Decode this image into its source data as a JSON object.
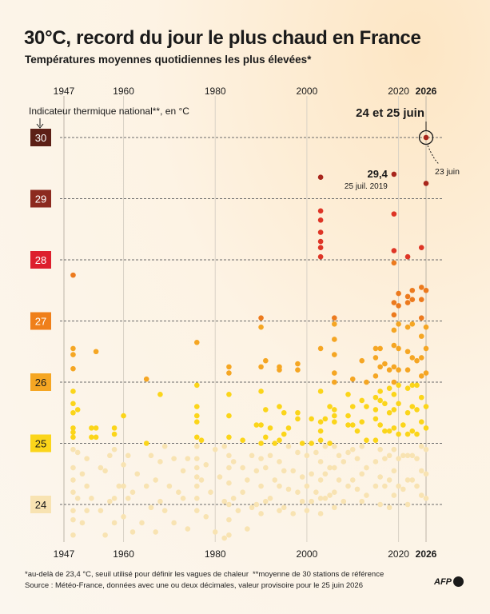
{
  "title": "30°C, record du jour le plus chaud en France",
  "subtitle": "Températures moyennes quotidiennes les plus élevées*",
  "footnotes": [
    "*au-delà de 23,4 °C, seuil utilisé pour définir les vagues de chaleur",
    "**moyenne de 30 stations de référence",
    "Source : Météo-France, données avec une ou deux décimales, valeur provisoire pour le 25 juin 2026"
  ],
  "logo": "AFP",
  "chart_data": {
    "type": "scatter",
    "title": "30°C, record du jour le plus chaud en France",
    "ylabel": "Indicateur thermique national**, en °C",
    "xlim": [
      1947,
      2026
    ],
    "ylim": [
      23.4,
      30
    ],
    "x_ticks": [
      1947,
      1960,
      1980,
      2000,
      2020,
      2026
    ],
    "y_ticks": [
      24,
      25,
      26,
      27,
      28,
      29,
      30
    ],
    "y_tick_colors": {
      "24": "#f8e3b2",
      "25": "#fbd51a",
      "26": "#f5a623",
      "27": "#ef7f1a",
      "28": "#dd1f2d",
      "29": "#8c2a1f",
      "30": "#5c1f16"
    },
    "grid": "horizontal dashed, vertical solid",
    "color_scale": [
      {
        "min": 23.4,
        "max": 25,
        "color": "#f8e3b2"
      },
      {
        "min": 25,
        "max": 26,
        "color": "#fbd51a"
      },
      {
        "min": 26,
        "max": 27,
        "color": "#f5a623"
      },
      {
        "min": 27,
        "max": 28,
        "color": "#ec7a1e"
      },
      {
        "min": 28,
        "max": 29,
        "color": "#de3526"
      },
      {
        "min": 29,
        "max": 30.5,
        "color": "#a8261c"
      }
    ],
    "annotations": [
      {
        "text": "24 et 25 juin",
        "x": 2026,
        "y": 30.0
      },
      {
        "text": "23 juin",
        "x": 2026,
        "y": 29.25
      },
      {
        "text": "29,4",
        "x": 2019,
        "y": 29.4
      },
      {
        "text": "25 juil. 2019",
        "x": 2019,
        "y": 29.4
      }
    ],
    "points": [
      [
        1949,
        27.75
      ],
      [
        1949,
        26.55
      ],
      [
        1949,
        26.45
      ],
      [
        1949,
        26.22
      ],
      [
        1949,
        25.85
      ],
      [
        1949,
        25.65
      ],
      [
        1949,
        25.5
      ],
      [
        1949,
        25.25
      ],
      [
        1949,
        25.18
      ],
      [
        1949,
        25.1
      ],
      [
        1949,
        24.9
      ],
      [
        1949,
        24.6
      ],
      [
        1949,
        24.4
      ],
      [
        1949,
        24.2
      ],
      [
        1949,
        23.9
      ],
      [
        1949,
        23.75
      ],
      [
        1949,
        23.5
      ],
      [
        1950,
        25.55
      ],
      [
        1950,
        24.85
      ],
      [
        1950,
        24.1
      ],
      [
        1951,
        24.5
      ],
      [
        1951,
        23.7
      ],
      [
        1952,
        24.75
      ],
      [
        1952,
        24.3
      ],
      [
        1952,
        23.9
      ],
      [
        1953,
        25.25
      ],
      [
        1953,
        25.1
      ],
      [
        1953,
        24.1
      ],
      [
        1954,
        26.5
      ],
      [
        1954,
        25.25
      ],
      [
        1954,
        25.1
      ],
      [
        1955,
        24.6
      ],
      [
        1955,
        23.9
      ],
      [
        1956,
        24.55
      ],
      [
        1956,
        23.5
      ],
      [
        1957,
        24.8
      ],
      [
        1957,
        24.05
      ],
      [
        1958,
        25.25
      ],
      [
        1958,
        25.15
      ],
      [
        1958,
        24.9
      ],
      [
        1958,
        24.1
      ],
      [
        1958,
        23.7
      ],
      [
        1959,
        24.3
      ],
      [
        1960,
        25.45
      ],
      [
        1960,
        24.65
      ],
      [
        1960,
        24.3
      ],
      [
        1960,
        23.8
      ],
      [
        1961,
        24.8
      ],
      [
        1961,
        24.1
      ],
      [
        1962,
        24.2
      ],
      [
        1962,
        23.55
      ],
      [
        1963,
        24.5
      ],
      [
        1964,
        23.7
      ],
      [
        1965,
        26.05
      ],
      [
        1965,
        25.0
      ],
      [
        1965,
        24.3
      ],
      [
        1966,
        24.8
      ],
      [
        1966,
        23.95
      ],
      [
        1967,
        24.4
      ],
      [
        1967,
        23.55
      ],
      [
        1968,
        25.8
      ],
      [
        1968,
        24.7
      ],
      [
        1968,
        24.05
      ],
      [
        1969,
        24.95
      ],
      [
        1969,
        23.9
      ],
      [
        1970,
        24.3
      ],
      [
        1971,
        24.75
      ],
      [
        1971,
        23.7
      ],
      [
        1972,
        24.2
      ],
      [
        1973,
        24.55
      ],
      [
        1973,
        24.1
      ],
      [
        1974,
        24.75
      ],
      [
        1974,
        23.6
      ],
      [
        1976,
        26.65
      ],
      [
        1976,
        25.95
      ],
      [
        1976,
        25.6
      ],
      [
        1976,
        25.45
      ],
      [
        1976,
        25.35
      ],
      [
        1976,
        25.1
      ],
      [
        1976,
        24.95
      ],
      [
        1976,
        24.75
      ],
      [
        1976,
        24.6
      ],
      [
        1976,
        24.45
      ],
      [
        1976,
        24.3
      ],
      [
        1976,
        24.1
      ],
      [
        1976,
        23.9
      ],
      [
        1977,
        25.05
      ],
      [
        1977,
        24.4
      ],
      [
        1978,
        24.65
      ],
      [
        1978,
        23.8
      ],
      [
        1979,
        24.2
      ],
      [
        1980,
        24.9
      ],
      [
        1980,
        23.55
      ],
      [
        1981,
        24.45
      ],
      [
        1982,
        24.95
      ],
      [
        1982,
        24.05
      ],
      [
        1982,
        23.45
      ],
      [
        1983,
        26.25
      ],
      [
        1983,
        26.15
      ],
      [
        1983,
        25.8
      ],
      [
        1983,
        25.45
      ],
      [
        1983,
        25.1
      ],
      [
        1983,
        24.8
      ],
      [
        1983,
        24.6
      ],
      [
        1983,
        24.35
      ],
      [
        1983,
        24.0
      ],
      [
        1983,
        23.75
      ],
      [
        1983,
        23.5
      ],
      [
        1984,
        24.7
      ],
      [
        1984,
        24.1
      ],
      [
        1985,
        23.9
      ],
      [
        1986,
        25.05
      ],
      [
        1986,
        24.6
      ],
      [
        1986,
        24.2
      ],
      [
        1987,
        24.4
      ],
      [
        1987,
        23.6
      ],
      [
        1988,
        24.8
      ],
      [
        1988,
        23.95
      ],
      [
        1989,
        25.3
      ],
      [
        1989,
        24.55
      ],
      [
        1989,
        24.0
      ],
      [
        1990,
        27.05
      ],
      [
        1990,
        26.9
      ],
      [
        1990,
        26.25
      ],
      [
        1990,
        25.85
      ],
      [
        1990,
        25.3
      ],
      [
        1990,
        25.0
      ],
      [
        1990,
        24.75
      ],
      [
        1990,
        24.3
      ],
      [
        1990,
        23.85
      ],
      [
        1991,
        26.35
      ],
      [
        1991,
        25.55
      ],
      [
        1991,
        25.1
      ],
      [
        1991,
        24.6
      ],
      [
        1991,
        24.05
      ],
      [
        1992,
        25.25
      ],
      [
        1992,
        24.8
      ],
      [
        1992,
        24.1
      ],
      [
        1993,
        25.0
      ],
      [
        1993,
        24.4
      ],
      [
        1994,
        26.25
      ],
      [
        1994,
        26.2
      ],
      [
        1994,
        25.6
      ],
      [
        1994,
        25.05
      ],
      [
        1994,
        24.7
      ],
      [
        1994,
        24.3
      ],
      [
        1994,
        23.9
      ],
      [
        1995,
        25.5
      ],
      [
        1995,
        25.15
      ],
      [
        1995,
        24.55
      ],
      [
        1995,
        23.95
      ],
      [
        1996,
        25.25
      ],
      [
        1996,
        24.95
      ],
      [
        1996,
        24.25
      ],
      [
        1997,
        24.55
      ],
      [
        1997,
        23.85
      ],
      [
        1998,
        26.3
      ],
      [
        1998,
        26.2
      ],
      [
        1998,
        25.5
      ],
      [
        1998,
        25.4
      ],
      [
        1998,
        24.85
      ],
      [
        1998,
        24.2
      ],
      [
        1999,
        25.0
      ],
      [
        1999,
        24.45
      ],
      [
        1999,
        24.05
      ],
      [
        2000,
        24.8
      ],
      [
        2000,
        24.3
      ],
      [
        2000,
        23.9
      ],
      [
        2001,
        25.4
      ],
      [
        2001,
        25.0
      ],
      [
        2001,
        24.5
      ],
      [
        2001,
        24.05
      ],
      [
        2002,
        24.85
      ],
      [
        2002,
        24.2
      ],
      [
        2003,
        29.35
      ],
      [
        2003,
        28.8
      ],
      [
        2003,
        28.65
      ],
      [
        2003,
        28.45
      ],
      [
        2003,
        28.3
      ],
      [
        2003,
        28.2
      ],
      [
        2003,
        28.05
      ],
      [
        2003,
        26.55
      ],
      [
        2003,
        25.85
      ],
      [
        2003,
        25.35
      ],
      [
        2003,
        25.2
      ],
      [
        2003,
        25.05
      ],
      [
        2003,
        24.7
      ],
      [
        2003,
        24.4
      ],
      [
        2003,
        24.1
      ],
      [
        2003,
        23.85
      ],
      [
        2004,
        25.4
      ],
      [
        2004,
        24.95
      ],
      [
        2004,
        24.5
      ],
      [
        2004,
        24.1
      ],
      [
        2005,
        25.6
      ],
      [
        2005,
        25.0
      ],
      [
        2005,
        24.6
      ],
      [
        2005,
        24.15
      ],
      [
        2006,
        27.05
      ],
      [
        2006,
        26.95
      ],
      [
        2006,
        26.7
      ],
      [
        2006,
        26.45
      ],
      [
        2006,
        26.15
      ],
      [
        2006,
        26.0
      ],
      [
        2006,
        25.55
      ],
      [
        2006,
        25.45
      ],
      [
        2006,
        25.35
      ],
      [
        2006,
        24.95
      ],
      [
        2006,
        24.6
      ],
      [
        2006,
        24.2
      ],
      [
        2006,
        23.95
      ],
      [
        2007,
        24.8
      ],
      [
        2007,
        24.4
      ],
      [
        2008,
        24.7
      ],
      [
        2008,
        24.05
      ],
      [
        2009,
        25.8
      ],
      [
        2009,
        25.45
      ],
      [
        2009,
        25.3
      ],
      [
        2009,
        24.85
      ],
      [
        2009,
        24.3
      ],
      [
        2010,
        26.05
      ],
      [
        2010,
        25.6
      ],
      [
        2010,
        25.3
      ],
      [
        2010,
        24.9
      ],
      [
        2010,
        24.4
      ],
      [
        2011,
        25.2
      ],
      [
        2011,
        24.75
      ],
      [
        2011,
        24.25
      ],
      [
        2012,
        26.35
      ],
      [
        2012,
        25.7
      ],
      [
        2012,
        25.35
      ],
      [
        2012,
        24.95
      ],
      [
        2012,
        24.5
      ],
      [
        2012,
        24.05
      ],
      [
        2013,
        26.0
      ],
      [
        2013,
        25.6
      ],
      [
        2013,
        25.05
      ],
      [
        2013,
        24.6
      ],
      [
        2013,
        24.15
      ],
      [
        2015,
        26.55
      ],
      [
        2015,
        26.4
      ],
      [
        2015,
        26.1
      ],
      [
        2015,
        25.75
      ],
      [
        2015,
        25.55
      ],
      [
        2015,
        25.4
      ],
      [
        2015,
        25.05
      ],
      [
        2015,
        24.7
      ],
      [
        2015,
        24.3
      ],
      [
        2016,
        26.55
      ],
      [
        2016,
        26.25
      ],
      [
        2016,
        25.85
      ],
      [
        2016,
        25.7
      ],
      [
        2016,
        25.3
      ],
      [
        2016,
        24.9
      ],
      [
        2016,
        24.45
      ],
      [
        2016,
        24.0
      ],
      [
        2017,
        26.3
      ],
      [
        2017,
        25.65
      ],
      [
        2017,
        25.2
      ],
      [
        2017,
        24.75
      ],
      [
        2017,
        24.3
      ],
      [
        2018,
        26.2
      ],
      [
        2018,
        25.9
      ],
      [
        2018,
        25.5
      ],
      [
        2018,
        25.2
      ],
      [
        2018,
        24.8
      ],
      [
        2018,
        24.4
      ],
      [
        2018,
        23.95
      ],
      [
        2019,
        29.4
      ],
      [
        2019,
        28.75
      ],
      [
        2019,
        28.15
      ],
      [
        2019,
        27.95
      ],
      [
        2019,
        27.3
      ],
      [
        2019,
        27.1
      ],
      [
        2019,
        26.85
      ],
      [
        2019,
        26.6
      ],
      [
        2019,
        26.25
      ],
      [
        2019,
        26.0
      ],
      [
        2019,
        25.8
      ],
      [
        2019,
        25.55
      ],
      [
        2019,
        25.25
      ],
      [
        2019,
        24.9
      ],
      [
        2019,
        24.55
      ],
      [
        2019,
        24.15
      ],
      [
        2020,
        27.45
      ],
      [
        2020,
        27.25
      ],
      [
        2020,
        26.95
      ],
      [
        2020,
        26.55
      ],
      [
        2020,
        26.2
      ],
      [
        2020,
        25.95
      ],
      [
        2020,
        25.65
      ],
      [
        2020,
        25.15
      ],
      [
        2020,
        24.75
      ],
      [
        2020,
        24.3
      ],
      [
        2021,
        25.3
      ],
      [
        2021,
        24.8
      ],
      [
        2021,
        24.25
      ],
      [
        2022,
        28.05
      ],
      [
        2022,
        27.4
      ],
      [
        2022,
        27.3
      ],
      [
        2022,
        26.9
      ],
      [
        2022,
        26.5
      ],
      [
        2022,
        26.2
      ],
      [
        2022,
        25.9
      ],
      [
        2022,
        25.5
      ],
      [
        2022,
        25.15
      ],
      [
        2022,
        24.8
      ],
      [
        2022,
        24.4
      ],
      [
        2022,
        24.0
      ],
      [
        2023,
        27.5
      ],
      [
        2023,
        27.35
      ],
      [
        2023,
        26.95
      ],
      [
        2023,
        26.4
      ],
      [
        2023,
        25.95
      ],
      [
        2023,
        25.6
      ],
      [
        2023,
        25.2
      ],
      [
        2023,
        24.8
      ],
      [
        2023,
        24.4
      ],
      [
        2024,
        26.35
      ],
      [
        2024,
        25.95
      ],
      [
        2024,
        25.55
      ],
      [
        2024,
        25.15
      ],
      [
        2024,
        24.75
      ],
      [
        2024,
        24.3
      ],
      [
        2025,
        28.2
      ],
      [
        2025,
        27.55
      ],
      [
        2025,
        27.35
      ],
      [
        2025,
        27.05
      ],
      [
        2025,
        26.75
      ],
      [
        2025,
        26.4
      ],
      [
        2025,
        26.1
      ],
      [
        2025,
        25.75
      ],
      [
        2025,
        25.35
      ],
      [
        2025,
        24.95
      ],
      [
        2025,
        24.55
      ],
      [
        2025,
        24.15
      ],
      [
        2026,
        30.0
      ],
      [
        2026,
        29.25
      ],
      [
        2026,
        27.5
      ],
      [
        2026,
        26.9
      ],
      [
        2026,
        26.55
      ],
      [
        2026,
        26.15
      ],
      [
        2026,
        25.6
      ],
      [
        2026,
        25.25
      ],
      [
        2026,
        24.9
      ],
      [
        2026,
        24.5
      ],
      [
        2026,
        24.1
      ]
    ]
  }
}
